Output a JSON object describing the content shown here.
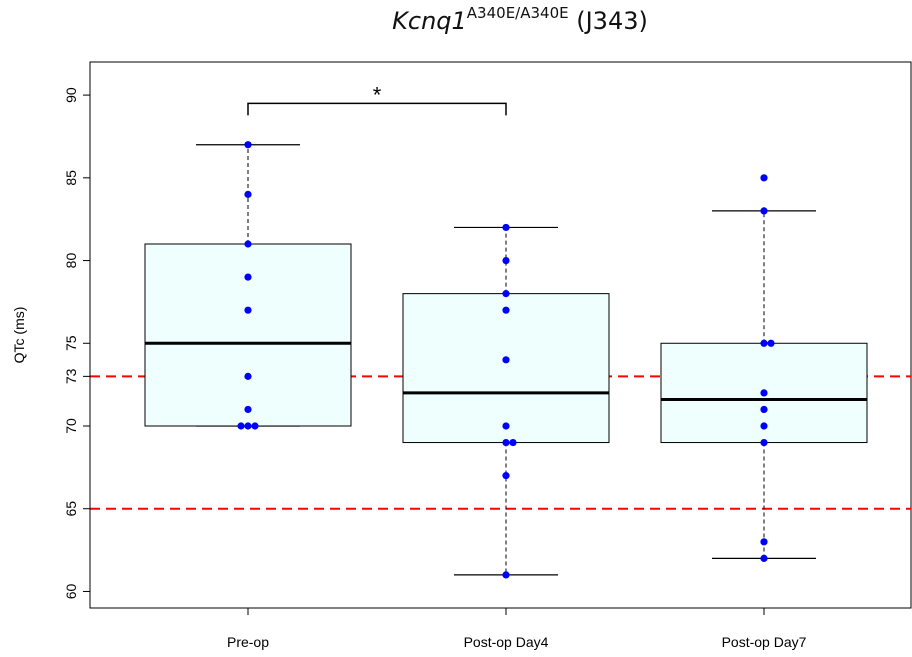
{
  "chart_data": {
    "type": "box",
    "title": {
      "gene": "Kcnq1",
      "superscript": "A340E/A340E",
      "suffix": "(J343)"
    },
    "xlabel": "",
    "ylabel": "QTc (ms)",
    "ylim": [
      59,
      92
    ],
    "yticks": [
      60,
      65,
      70,
      75,
      80,
      85,
      90
    ],
    "extra_ytick": 73,
    "categories": [
      "Pre-op",
      "Post-op Day4",
      "Post-op Day7"
    ],
    "boxes": [
      {
        "whisker_low": 70,
        "q1": 70,
        "median": 75,
        "q3": 81,
        "whisker_high": 87
      },
      {
        "whisker_low": 61,
        "q1": 69,
        "median": 72,
        "q3": 78,
        "whisker_high": 82
      },
      {
        "whisker_low": 62,
        "q1": 69,
        "median": 71.6,
        "q3": 75,
        "whisker_high": 83
      }
    ],
    "points": [
      [
        87,
        84,
        81,
        79,
        77,
        73,
        71,
        70,
        70,
        70
      ],
      [
        82,
        80,
        78,
        77,
        74,
        70,
        69,
        69,
        67,
        61
      ],
      [
        85,
        83,
        75,
        75,
        72,
        71,
        70,
        69,
        63,
        62
      ]
    ],
    "reference_lines": [
      73,
      65
    ],
    "significance": {
      "from": "Pre-op",
      "to": "Post-op Day4",
      "label": "*",
      "y": 89.5
    },
    "colors": {
      "box_fill": "#eefffe",
      "point": "#0000ff",
      "reference_line": "#ff0000",
      "median": "#000000"
    }
  }
}
